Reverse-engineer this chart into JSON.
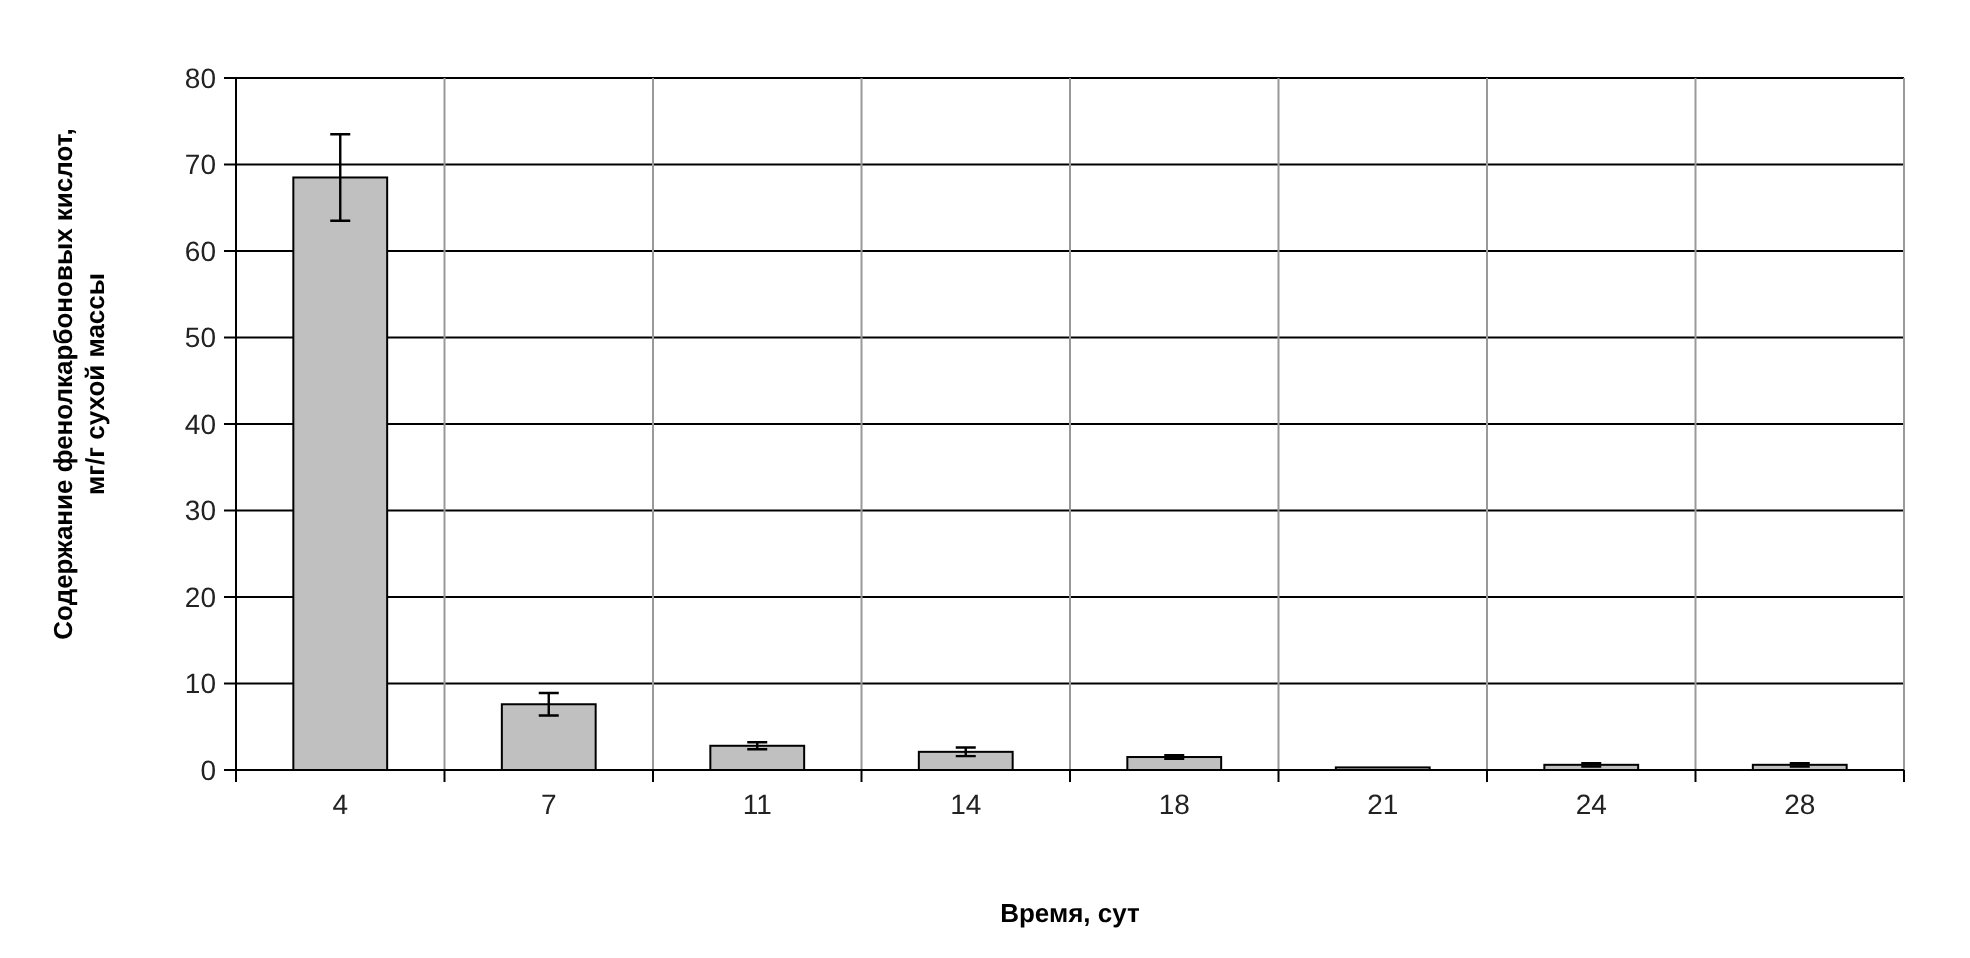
{
  "chart_data": {
    "type": "bar",
    "xlabel": "Время, сут",
    "ylabel": "Содержание фенолкарбоновых кислот,\nмг/г сухой массы",
    "categories": [
      "4",
      "7",
      "11",
      "14",
      "18",
      "21",
      "24",
      "28"
    ],
    "values": [
      68.5,
      7.6,
      2.8,
      2.1,
      1.5,
      0.3,
      0.6,
      0.6
    ],
    "errors": [
      5,
      1.3,
      0.4,
      0.5,
      0.2,
      null,
      0.2,
      0.2
    ],
    "color": "#c0c0c0",
    "ylim": [
      0,
      80
    ],
    "yticks": [
      0,
      10,
      20,
      30,
      40,
      50,
      60,
      70,
      80
    ],
    "grid": true
  }
}
